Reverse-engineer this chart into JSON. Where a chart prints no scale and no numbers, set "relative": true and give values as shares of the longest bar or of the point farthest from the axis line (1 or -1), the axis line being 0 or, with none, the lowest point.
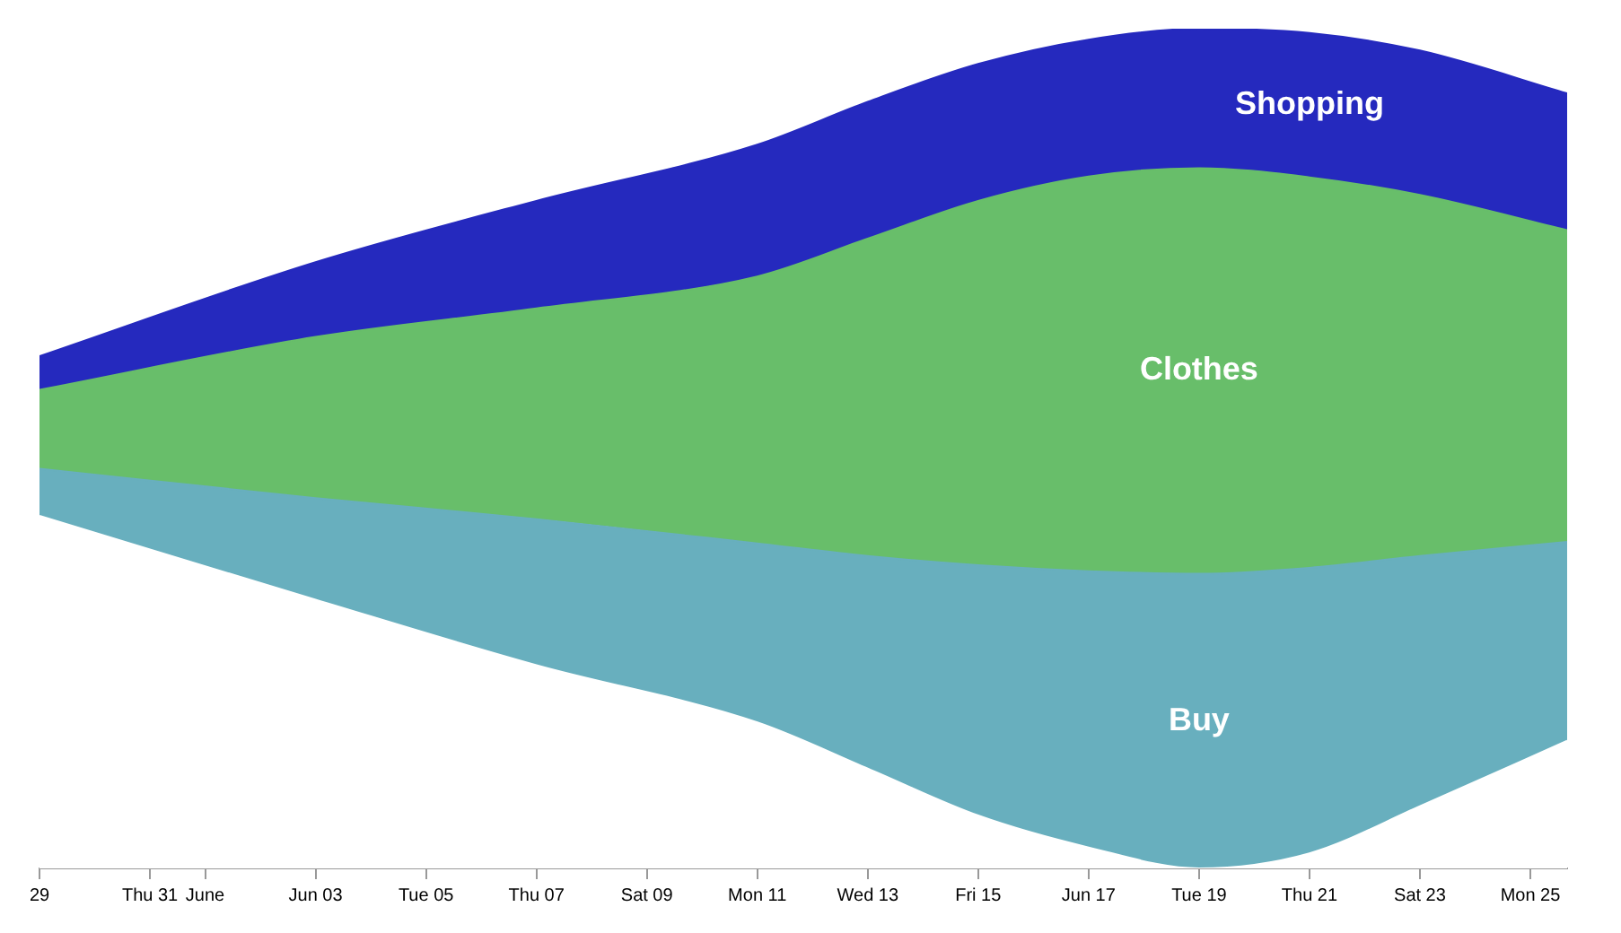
{
  "chart_data": {
    "type": "area",
    "stacked": true,
    "relative": true,
    "legend": false,
    "grid": false,
    "x": [
      "--05-29",
      "--06-03",
      "--06-07",
      "--06-11",
      "--06-13",
      "--06-15",
      "--06-17",
      "--06-19",
      "--06-21",
      "--06-23",
      "--06-25T16:00"
    ],
    "xlim": [
      "--05-29",
      "--06-25T16:00"
    ],
    "xticks": [
      {
        "value": "--05-29",
        "label": "29"
      },
      {
        "value": "--05-31",
        "label": "Thu 31"
      },
      {
        "value": "--06-01",
        "label": "June"
      },
      {
        "value": "--06-03",
        "label": "Jun 03"
      },
      {
        "value": "--06-05",
        "label": "Tue 05"
      },
      {
        "value": "--06-07",
        "label": "Thu 07"
      },
      {
        "value": "--06-09",
        "label": "Sat 09"
      },
      {
        "value": "--06-11",
        "label": "Mon 11"
      },
      {
        "value": "--06-13",
        "label": "Wed 13"
      },
      {
        "value": "--06-15",
        "label": "Fri 15"
      },
      {
        "value": "--06-17",
        "label": "Jun 17"
      },
      {
        "value": "--06-19",
        "label": "Tue 19"
      },
      {
        "value": "--06-21",
        "label": "Thu 21"
      },
      {
        "value": "--06-23",
        "label": "Sat 23"
      },
      {
        "value": "--06-25",
        "label": "Mon 25"
      }
    ],
    "series": [
      {
        "color": "#ffffff",
        "values": [
          0.42,
          0.32,
          0.242,
          0.174,
          0.119,
          0.063,
          0.025,
          0,
          0.018,
          0.074,
          0.152
        ]
      },
      {
        "name": "Buy",
        "color": "#68afbe",
        "values": [
          0.056,
          0.121,
          0.174,
          0.213,
          0.253,
          0.298,
          0.329,
          0.351,
          0.34,
          0.298,
          0.237
        ]
      },
      {
        "name": "Clothes",
        "color": "#68be6a",
        "values": [
          0.094,
          0.192,
          0.251,
          0.318,
          0.378,
          0.434,
          0.47,
          0.483,
          0.465,
          0.43,
          0.371
        ]
      },
      {
        "name": "Shopping",
        "color": "#2529be",
        "values": [
          0.04,
          0.089,
          0.128,
          0.157,
          0.163,
          0.163,
          0.163,
          0.166,
          0.172,
          0.172,
          0.163
        ]
      }
    ]
  }
}
